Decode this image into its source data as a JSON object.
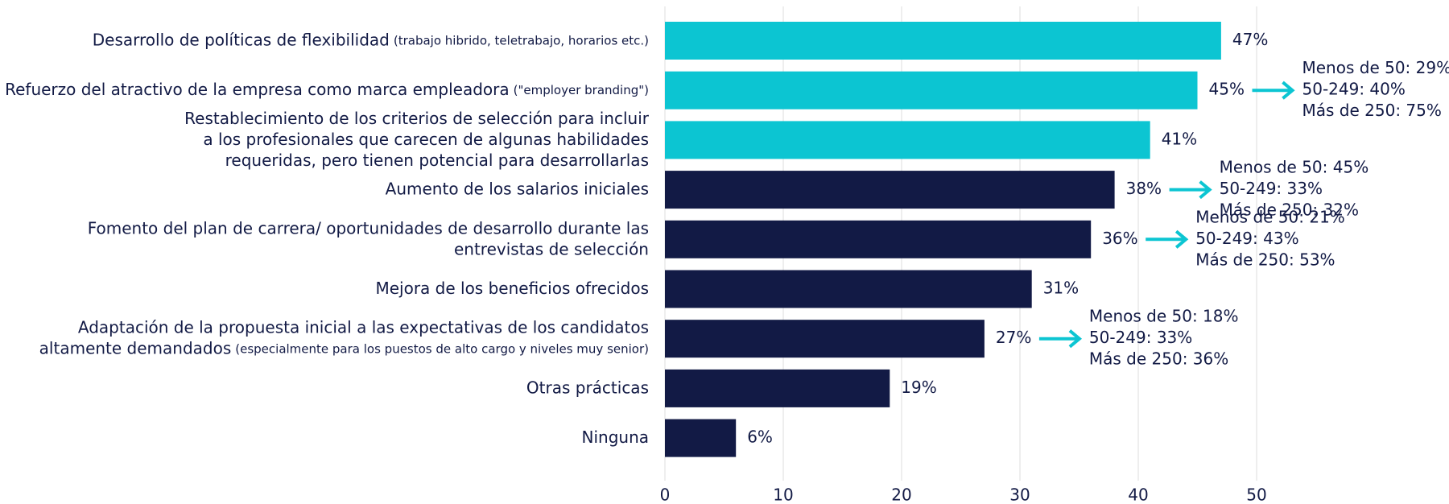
{
  "chart_data": {
    "type": "barh",
    "categories": [
      {
        "lines": [
          "Desarrollo de políticas de flexibilidad"
        ],
        "note": "(trabajo hibrido, teletrabajo, horarios etc.)"
      },
      {
        "lines": [
          "Refuerzo del atractivo de la empresa como marca empleadora"
        ],
        "note": "(\"employer branding\")"
      },
      {
        "lines": [
          "Restablecimiento de los criterios de selección para incluir",
          "a los profesionales que carecen de algunas habilidades",
          "requeridas, pero tienen potencial para desarrollarlas"
        ]
      },
      {
        "lines": [
          "Aumento de los salarios iniciales"
        ]
      },
      {
        "lines": [
          "Fomento del plan de carrera/ oportunidades de desarrollo durante las",
          "entrevistas de selección"
        ]
      },
      {
        "lines": [
          "Mejora de los beneficios ofrecidos"
        ]
      },
      {
        "lines": [
          "Adaptación de la propuesta inicial a las expectativas de los candidatos",
          "altamente demandados"
        ],
        "note": "(especialmente para los puestos de alto cargo y niveles muy senior)"
      },
      {
        "lines": [
          "Otras prácticas"
        ]
      },
      {
        "lines": [
          "Ninguna"
        ]
      }
    ],
    "values": [
      47,
      45,
      41,
      38,
      36,
      31,
      27,
      19,
      6
    ],
    "value_labels": [
      "47%",
      "45%",
      "41%",
      "38%",
      "36%",
      "31%",
      "27%",
      "19%",
      "6%"
    ],
    "colors": [
      "#0cc5d2",
      "#0cc5d2",
      "#0cc5d2",
      "#121a45",
      "#121a45",
      "#121a45",
      "#121a45",
      "#121a45",
      "#121a45"
    ],
    "label_colors": [
      "#0cc5d2",
      "#0cc5d2",
      "#0cc5d2",
      "#121a45",
      "#121a45",
      "#121a45",
      "#121a45",
      "#121a45",
      "#121a45"
    ],
    "xlim": [
      0,
      50
    ],
    "xticks": [
      0,
      10,
      20,
      30,
      40,
      50
    ],
    "grid": true,
    "annotations": [
      {
        "bar": 1,
        "lines": [
          {
            "text": "Menos de 50: 29%",
            "color": "#121a45"
          },
          {
            "text": "50-249: 40%",
            "color": "#121a45"
          },
          {
            "text": "Más de 250: 75%",
            "color": "#0cc5d2"
          }
        ]
      },
      {
        "bar": 3,
        "lines": [
          {
            "text": "Menos de 50: 45%",
            "color": "#0cc5d2"
          },
          {
            "text": "50-249: 33%",
            "color": "#121a45"
          },
          {
            "text": "Más de 250: 32%",
            "color": "#121a45"
          }
        ]
      },
      {
        "bar": 4,
        "lines": [
          {
            "text": "Menos de 50: 21%",
            "color": "#121a45"
          },
          {
            "text": "50-249: 43%",
            "color": "#121a45"
          },
          {
            "text": "Más de 250: 53%",
            "color": "#0cc5d2"
          }
        ]
      },
      {
        "bar": 6,
        "lines": [
          {
            "text": "Menos de 50: 18%",
            "color": "#121a45"
          },
          {
            "text": "50-249: 33%",
            "color": "#0cc5d2"
          },
          {
            "text": "Más de 250: 36%",
            "color": "#0cc5d2"
          }
        ]
      }
    ]
  }
}
